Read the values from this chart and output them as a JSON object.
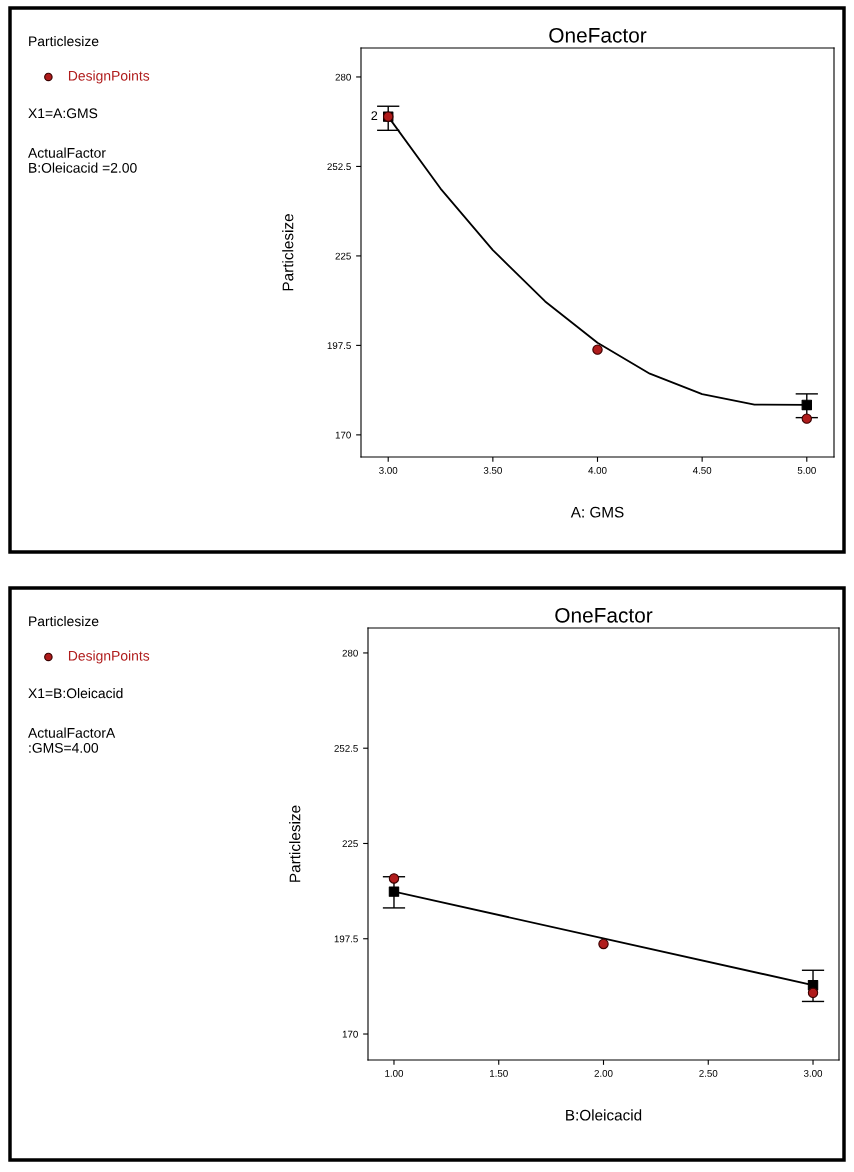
{
  "chart_data": [
    {
      "type": "scatter",
      "title": "OneFactor",
      "xlabel": "A: GMS",
      "ylabel": "Particlesize",
      "xlim": [
        2.87,
        5.13
      ],
      "xticks": [
        {
          "value": 3,
          "label": "3.00"
        },
        {
          "value": 3.5,
          "label": "3.50"
        },
        {
          "value": 4,
          "label": "4.00"
        },
        {
          "value": 4.5,
          "label": "4.50"
        },
        {
          "value": 5,
          "label": "5.00"
        }
      ],
      "ylim": [
        163.2,
        288.9
      ],
      "yticks": [
        170,
        197.5,
        225,
        252.5,
        280
      ],
      "grid": false,
      "legend": "left",
      "series": [
        {
          "type": "line",
          "color": "#000000",
          "x": [
            3,
            3.25,
            3.5,
            3.75,
            4,
            4.25,
            4.5,
            4.75,
            5
          ],
          "values": [
            267.8,
            245.7,
            226.8,
            211.0,
            198.3,
            188.8,
            182.5,
            179.3,
            179.2
          ],
          "marker": "none"
        },
        {
          "marker": "square",
          "color": "#000000",
          "x": [
            3,
            5
          ],
          "values": [
            267.8,
            179.2
          ],
          "errors": [
            [
              263.6,
              271.0
            ],
            [
              175.3,
              182.6
            ]
          ]
        },
        {
          "marker": "circle",
          "name": "DesignPoints",
          "color": "#b01c1c",
          "x": [
            3,
            4,
            5
          ],
          "values": [
            267.8,
            196.2,
            175.0
          ]
        }
      ],
      "annotations": [
        "Particlesize",
        "X1=A:GMS",
        "ActualFactor\nB:Oleicacid =2.00",
        {
          "text": "2",
          "x": 3,
          "y": 267.8
        }
      ]
    },
    {
      "type": "scatter",
      "title": "OneFactor",
      "xlabel": "B:Oleicacid",
      "ylabel": "Particlesize",
      "xlim": [
        0.876,
        3.124
      ],
      "xticks": [
        {
          "value": 1,
          "label": "1.00"
        },
        {
          "value": 1.5,
          "label": "1.50"
        },
        {
          "value": 2,
          "label": "2.00"
        },
        {
          "value": 2.5,
          "label": "2.50"
        },
        {
          "value": 3,
          "label": "3.00"
        }
      ],
      "ylim": [
        162.5,
        287.2
      ],
      "yticks": [
        170,
        197.5,
        225,
        252.5,
        280
      ],
      "grid": false,
      "legend": "left",
      "series": [
        {
          "type": "line",
          "color": "#000000",
          "x": [
            1,
            3
          ],
          "values": [
            211.1,
            184.1
          ],
          "marker": "none"
        },
        {
          "marker": "square",
          "color": "#000000",
          "x": [
            1,
            3
          ],
          "values": [
            211.1,
            184.1
          ],
          "errors": [
            [
              206.4,
              215.4
            ],
            [
              179.4,
              188.4
            ]
          ]
        },
        {
          "marker": "circle",
          "name": "DesignPoints",
          "color": "#b01c1c",
          "x": [
            1,
            2,
            3
          ],
          "values": [
            214.9,
            196.0,
            181.9
          ]
        }
      ],
      "annotations": [
        "Particlesize",
        "X1=B:Oleicacid",
        "ActualFactorA\n:GMS=4.00"
      ]
    }
  ]
}
